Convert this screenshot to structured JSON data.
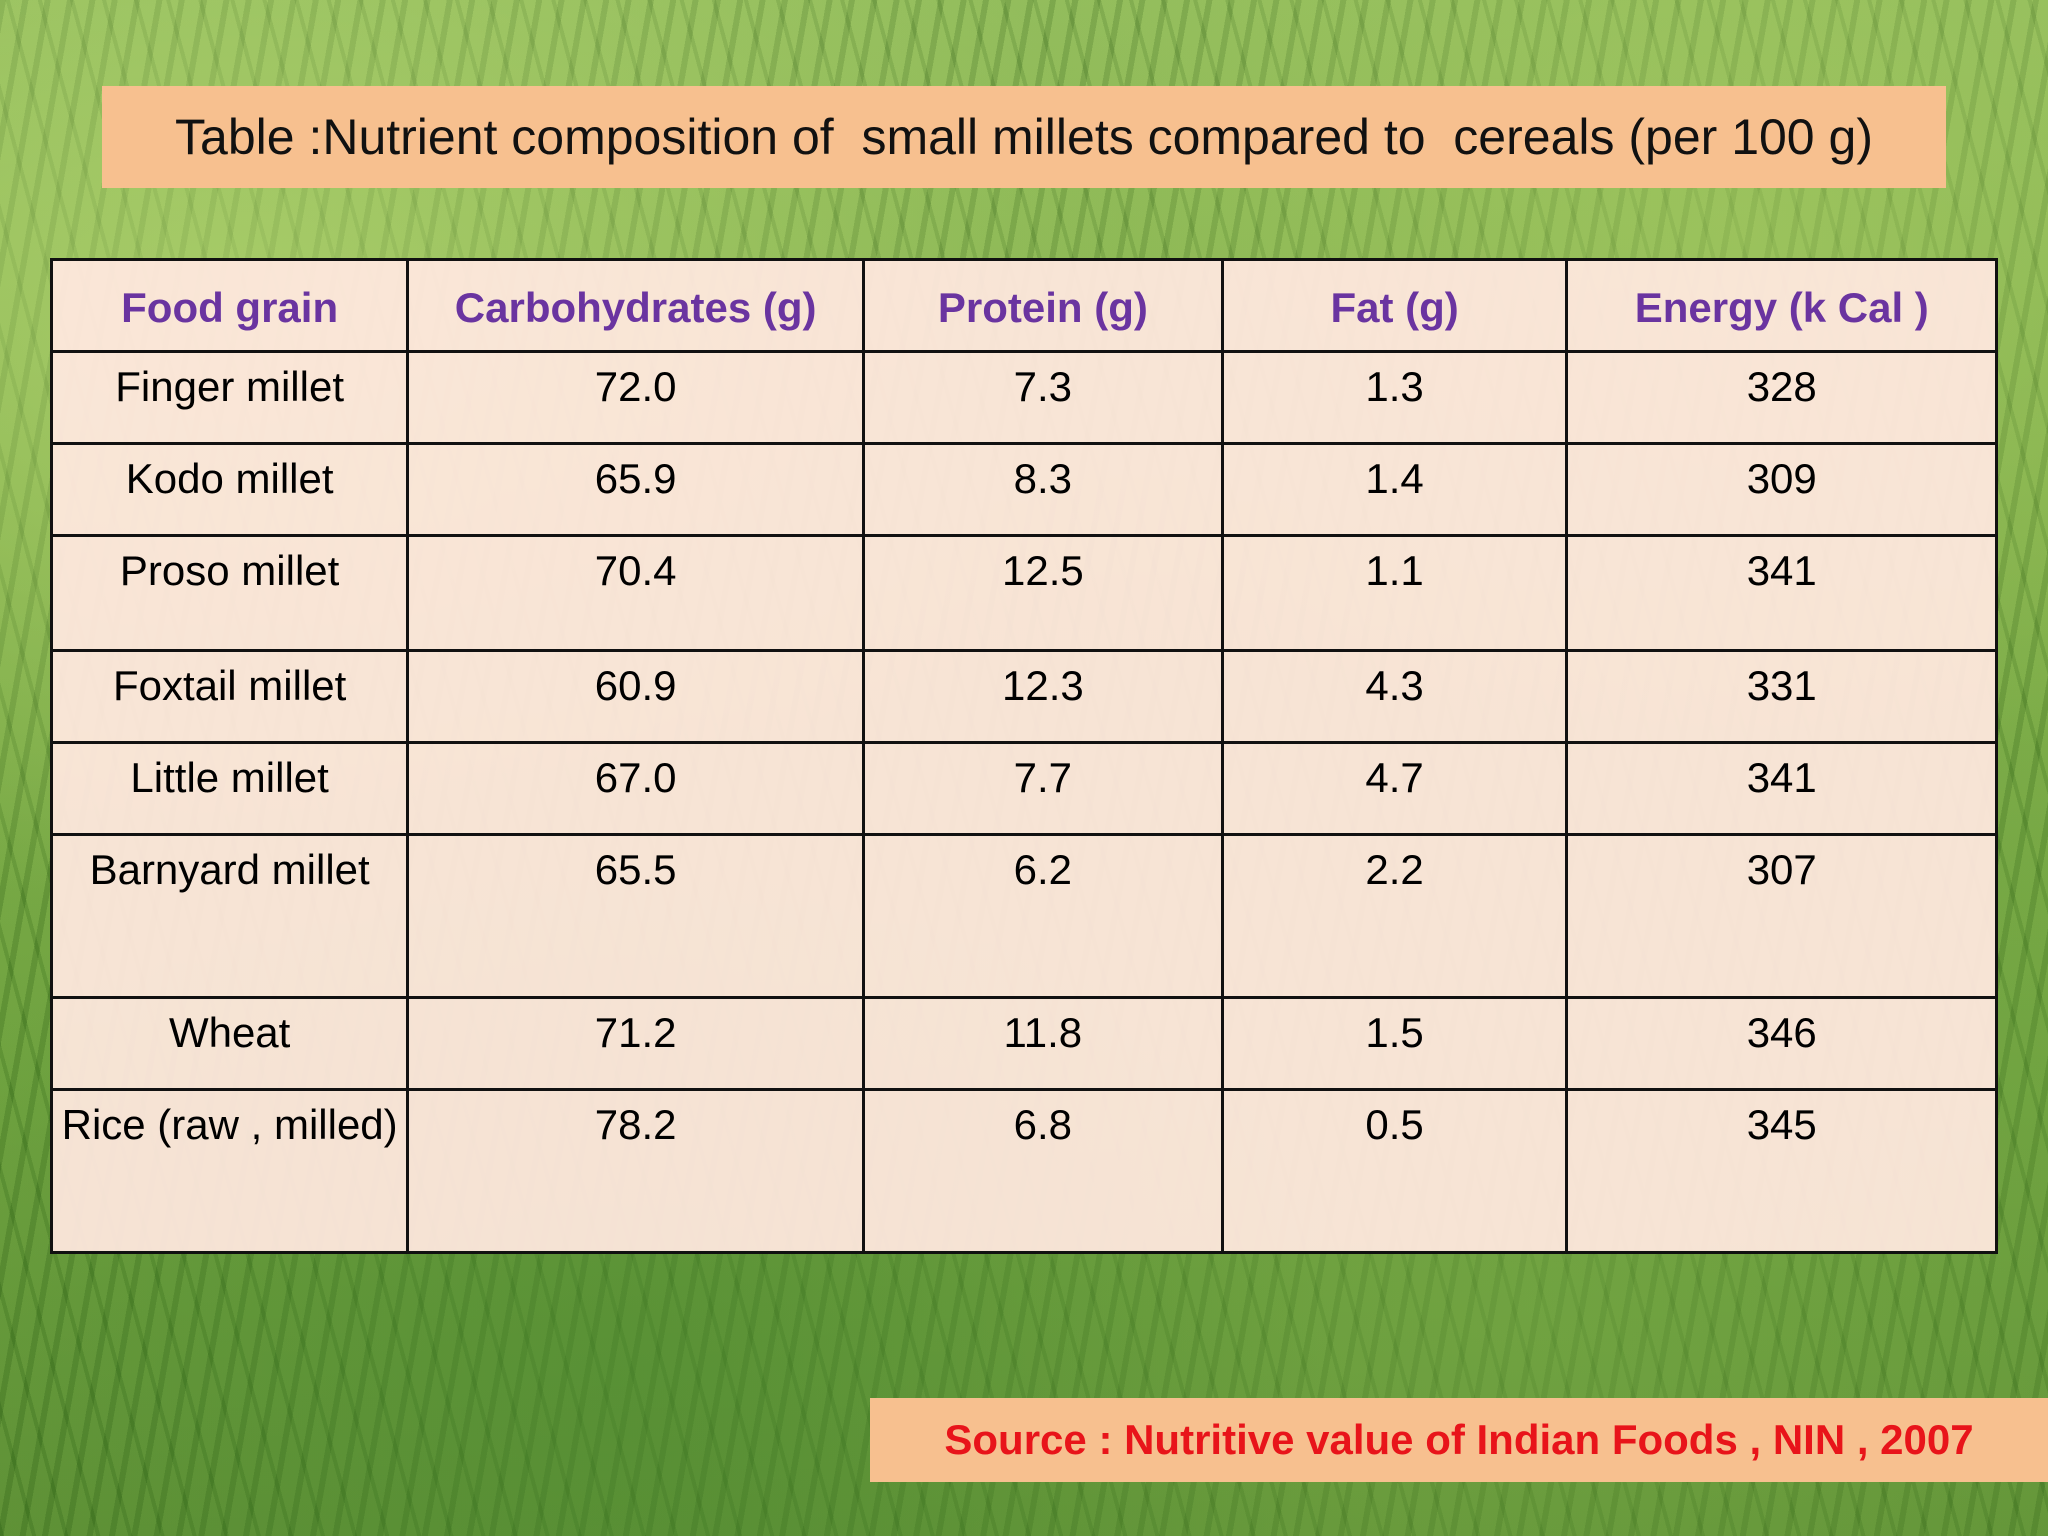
{
  "title": "Table :Nutrient composition of  small millets compared to  cereals (per 100 g)",
  "table": {
    "headers": [
      "Food grain",
      "Carbohydrates (g)",
      "Protein (g)",
      "Fat (g)",
      "Energy (k Cal )"
    ],
    "rows": [
      [
        "Finger millet",
        "72.0",
        "7.3",
        "1.3",
        "328"
      ],
      [
        "Kodo millet",
        "65.9",
        "8.3",
        "1.4",
        "309"
      ],
      [
        "Proso millet",
        "70.4",
        "12.5",
        "1.1",
        "341"
      ],
      [
        "Foxtail millet",
        "60.9",
        "12.3",
        "4.3",
        "331"
      ],
      [
        "Little millet",
        "67.0",
        "7.7",
        "4.7",
        "341"
      ],
      [
        "Barnyard millet",
        "65.5",
        "6.2",
        "2.2",
        "307"
      ],
      [
        "Wheat",
        "71.2",
        "11.8",
        "1.5",
        "346"
      ],
      [
        "Rice (raw , milled)",
        "78.2",
        "6.8",
        "0.5",
        "345"
      ]
    ]
  },
  "source": "Source : Nutritive value of Indian Foods , NIN , 2007",
  "colors": {
    "header_text": "#6a34a0",
    "highlight_text": "#6a34a0",
    "title_box": "#f7c08f",
    "source_text": "#e8141a"
  }
}
